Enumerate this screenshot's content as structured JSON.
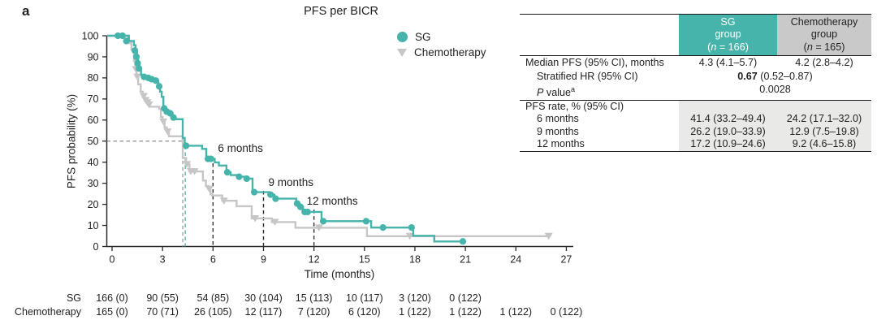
{
  "panel_label": "a",
  "title": "PFS per BICR",
  "colors": {
    "sg_teal": "#46b4ab",
    "chemo_gray": "#c6c6c6",
    "header_gray": "#c9c9c9",
    "shade_gray": "#e9e9e7",
    "axis_dark": "#2b2b2b",
    "dash_gray": "#8f8f8f",
    "dash_dark": "#2f2f2f"
  },
  "legend": [
    {
      "label": "SG",
      "marker": "circle",
      "color": "#46b4ab"
    },
    {
      "label": "Chemotherapy",
      "marker": "triangle-down",
      "color": "#c6c6c6"
    }
  ],
  "chart_data": {
    "type": "line",
    "subtype": "kaplan-meier-step",
    "title": "PFS per BICR",
    "xlabel": "Time (months)",
    "ylabel": "PFS probability (%)",
    "xlim": [
      0,
      27
    ],
    "xticks": [
      0,
      3,
      6,
      9,
      12,
      15,
      18,
      21,
      24,
      27
    ],
    "ylim": [
      0,
      100
    ],
    "yticks": [
      0,
      10,
      20,
      30,
      40,
      50,
      60,
      70,
      80,
      90,
      100
    ],
    "grid": false,
    "legend_position": "top-right-inside",
    "series": [
      {
        "name": "Chemotherapy",
        "color": "#c6c6c6",
        "marker": "triangle-down",
        "median_months": 4.2,
        "steps": [
          [
            0,
            100
          ],
          [
            0.95,
            96.5
          ],
          [
            1.15,
            93.5
          ],
          [
            1.3,
            88
          ],
          [
            1.38,
            84
          ],
          [
            1.46,
            80.5
          ],
          [
            1.55,
            77
          ],
          [
            1.7,
            73.5
          ],
          [
            1.82,
            71.3
          ],
          [
            1.93,
            69.4
          ],
          [
            2.03,
            68.3
          ],
          [
            2.13,
            67.3
          ],
          [
            2.25,
            66.3
          ],
          [
            2.8,
            65.3
          ],
          [
            2.9,
            61.5
          ],
          [
            3.0,
            59.2
          ],
          [
            3.12,
            56.5
          ],
          [
            3.25,
            54.5
          ],
          [
            3.38,
            52.3
          ],
          [
            4.2,
            42
          ],
          [
            4.4,
            39
          ],
          [
            4.6,
            35.6
          ],
          [
            5.4,
            31.3
          ],
          [
            5.58,
            28.7
          ],
          [
            5.72,
            27.3
          ],
          [
            5.85,
            24.8
          ],
          [
            5.95,
            24.2
          ],
          [
            6.55,
            21.7
          ],
          [
            7.4,
            19.1
          ],
          [
            8.3,
            13.3
          ],
          [
            9.5,
            11.6
          ],
          [
            10.9,
            8.9
          ],
          [
            15.15,
            4.9
          ],
          [
            26.0,
            4.9
          ]
        ],
        "censor_marks": [
          [
            1.42,
            84
          ],
          [
            1.5,
            80.5
          ],
          [
            1.88,
            71.3
          ],
          [
            2.0,
            69.4
          ],
          [
            2.1,
            68.3
          ],
          [
            2.2,
            67.3
          ],
          [
            3.05,
            59.2
          ],
          [
            3.3,
            54.5
          ],
          [
            4.45,
            39
          ],
          [
            4.68,
            35.6
          ],
          [
            4.9,
            35.6
          ],
          [
            5.78,
            27.3
          ],
          [
            6.65,
            21.7
          ],
          [
            8.5,
            13.3
          ],
          [
            9.68,
            11.6
          ],
          [
            12.3,
            8.9
          ],
          [
            17.7,
            4.9
          ],
          [
            25.95,
            4.9
          ]
        ]
      },
      {
        "name": "SG",
        "color": "#46b4ab",
        "marker": "circle",
        "median_months": 4.3,
        "steps": [
          [
            0,
            100
          ],
          [
            1.0,
            97.5
          ],
          [
            1.3,
            95.5
          ],
          [
            1.4,
            93
          ],
          [
            1.48,
            90
          ],
          [
            1.55,
            87
          ],
          [
            1.62,
            84.5
          ],
          [
            1.72,
            81.5
          ],
          [
            1.85,
            80.5
          ],
          [
            2.1,
            80
          ],
          [
            2.3,
            79.4
          ],
          [
            2.55,
            78.7
          ],
          [
            2.75,
            76
          ],
          [
            2.85,
            73.5
          ],
          [
            2.95,
            71
          ],
          [
            3.05,
            65.5
          ],
          [
            3.2,
            64
          ],
          [
            3.4,
            63.2
          ],
          [
            3.6,
            61.2
          ],
          [
            3.75,
            60.4
          ],
          [
            4.2,
            51.5
          ],
          [
            4.32,
            47.8
          ],
          [
            5.35,
            46.3
          ],
          [
            5.6,
            41.6
          ],
          [
            6.1,
            39.9
          ],
          [
            6.35,
            38.4
          ],
          [
            6.8,
            35.2
          ],
          [
            7.05,
            33.9
          ],
          [
            7.5,
            33.1
          ],
          [
            7.95,
            32.2
          ],
          [
            8.35,
            25.8
          ],
          [
            9.35,
            24.6
          ],
          [
            9.65,
            22.7
          ],
          [
            10.95,
            20.4
          ],
          [
            11.15,
            18.8
          ],
          [
            11.35,
            16.4
          ],
          [
            12.45,
            12.0
          ],
          [
            15.4,
            9.0
          ],
          [
            17.9,
            5.1
          ],
          [
            19.15,
            2.4
          ],
          [
            20.9,
            2.4
          ]
        ],
        "censor_marks": [
          [
            0.35,
            100
          ],
          [
            0.62,
            100
          ],
          [
            0.85,
            97.5
          ],
          [
            1.35,
            93
          ],
          [
            1.45,
            90
          ],
          [
            1.52,
            87
          ],
          [
            1.6,
            84.5
          ],
          [
            1.9,
            80.5
          ],
          [
            2.15,
            80
          ],
          [
            2.35,
            79.4
          ],
          [
            2.6,
            78.7
          ],
          [
            2.8,
            76
          ],
          [
            3.1,
            65.5
          ],
          [
            3.25,
            64
          ],
          [
            3.45,
            63.2
          ],
          [
            3.65,
            61.2
          ],
          [
            4.4,
            47.8
          ],
          [
            5.7,
            41.6
          ],
          [
            5.87,
            41.6
          ],
          [
            6.85,
            35.2
          ],
          [
            7.55,
            33.1
          ],
          [
            8.0,
            32.2
          ],
          [
            8.45,
            25.8
          ],
          [
            9.42,
            24.6
          ],
          [
            9.72,
            22.7
          ],
          [
            11.0,
            20.4
          ],
          [
            11.2,
            18.8
          ],
          [
            11.45,
            16.4
          ],
          [
            11.62,
            16.4
          ],
          [
            12.55,
            12.0
          ],
          [
            15.1,
            12.0
          ],
          [
            16.1,
            9.0
          ],
          [
            17.8,
            9.0
          ],
          [
            20.85,
            2.4
          ]
        ]
      }
    ],
    "reference_lines": {
      "horizontal": {
        "y": 50,
        "x_end_month": 4.35
      },
      "median_verticals": [
        {
          "month": 4.2,
          "from_pct": 50,
          "color": "#a0a0a0"
        },
        {
          "month": 4.35,
          "from_pct": 47.8,
          "color": "#46b4ab"
        }
      ],
      "annotations": [
        {
          "label": "6 months",
          "month": 6,
          "top_pct": 42.6,
          "label_dx": 6
        },
        {
          "label": "9 months",
          "month": 9,
          "top_pct": 26.4,
          "label_dx": 6
        },
        {
          "label": "12 months",
          "month": 12,
          "top_pct": 17.5,
          "label_dx": -9
        }
      ]
    }
  },
  "risk_table": {
    "rows": [
      {
        "label": "SG",
        "counts": [
          "166 (0)",
          "90 (55)",
          "54 (85)",
          "30 (104)",
          "15 (113)",
          "10 (117)",
          "3 (120)",
          "0 (122)"
        ]
      },
      {
        "label": "Chemotherapy",
        "counts": [
          "165 (0)",
          "70 (71)",
          "26 (105)",
          "12 (117)",
          "7 (120)",
          "6 (120)",
          "1 (122)",
          "1 (122)",
          "1 (122)",
          "0 (122)"
        ]
      }
    ]
  },
  "stats_table": {
    "header": {
      "sg": {
        "line1": "SG",
        "line2": "group",
        "n_open": "(",
        "n_italic": "n",
        "n_rest": " = 166)"
      },
      "chemo": {
        "line1": "Chemotherapy",
        "line2": "group",
        "n_open": "(",
        "n_italic": "n",
        "n_rest": " = 165)"
      }
    },
    "rows": {
      "median": {
        "label": "Median PFS (95% CI), months",
        "sg": "4.3 (4.1–5.7)",
        "chemo": "4.2 (2.8–4.2)"
      },
      "hr": {
        "label": "Stratified HR (95% CI)",
        "bold": "0.67",
        "rest": " (0.52–0.87)"
      },
      "p": {
        "label_italic": "P",
        "label_rest": " value",
        "sup": "a",
        "value": "0.0028"
      },
      "section": {
        "label": "PFS rate, % (95% CI)"
      },
      "m6": {
        "label": "6 months",
        "sg": "41.4 (33.2–49.4)",
        "chemo": "24.2 (17.1–32.0)"
      },
      "m9": {
        "label": "9 months",
        "sg": "26.2 (19.0–33.9)",
        "chemo": "12.9 (7.5–19.8)"
      },
      "m12": {
        "label": "12 months",
        "sg": "17.2 (10.9–24.6)",
        "chemo": "9.2 (4.6–15.8)"
      }
    }
  }
}
